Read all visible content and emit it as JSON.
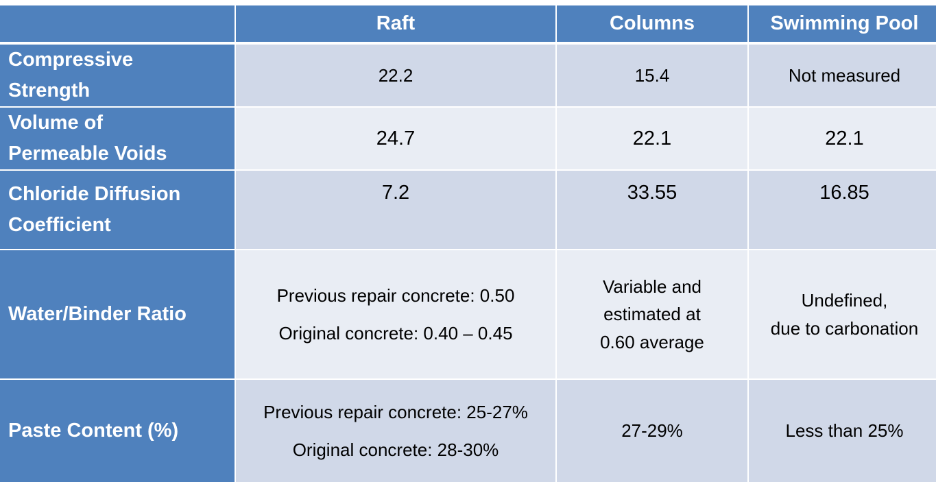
{
  "table": {
    "headers": [
      "",
      "Raft",
      "Columns",
      "Swimming Pool"
    ],
    "rows": [
      {
        "label_lines": [
          "Compressive",
          "Strength"
        ],
        "raft": [
          "22.2"
        ],
        "columns": [
          "15.4"
        ],
        "pool": [
          "Not measured"
        ]
      },
      {
        "label_lines": [
          "Volume of",
          "Permeable Voids"
        ],
        "raft": [
          "24.7"
        ],
        "columns": [
          "22.1"
        ],
        "pool": [
          "22.1"
        ]
      },
      {
        "label_lines": [
          "Chloride Diffusion",
          "Coefficient"
        ],
        "raft": [
          "7.2"
        ],
        "columns": [
          "33.55"
        ],
        "pool": [
          "16.85"
        ]
      },
      {
        "label_lines": [
          "Water/Binder Ratio"
        ],
        "raft": [
          "Previous repair concrete: 0.50",
          "Original concrete: 0.40 – 0.45"
        ],
        "columns": [
          "Variable and",
          "estimated at",
          "0.60 average"
        ],
        "pool": [
          "Undefined,",
          "due to carbonation"
        ]
      },
      {
        "label_lines": [
          "Paste Content (%)"
        ],
        "raft": [
          "Previous repair concrete: 25-27%",
          "Original concrete: 28-30%"
        ],
        "columns": [
          "27-29%"
        ],
        "pool": [
          "Less than 25%"
        ]
      }
    ]
  }
}
